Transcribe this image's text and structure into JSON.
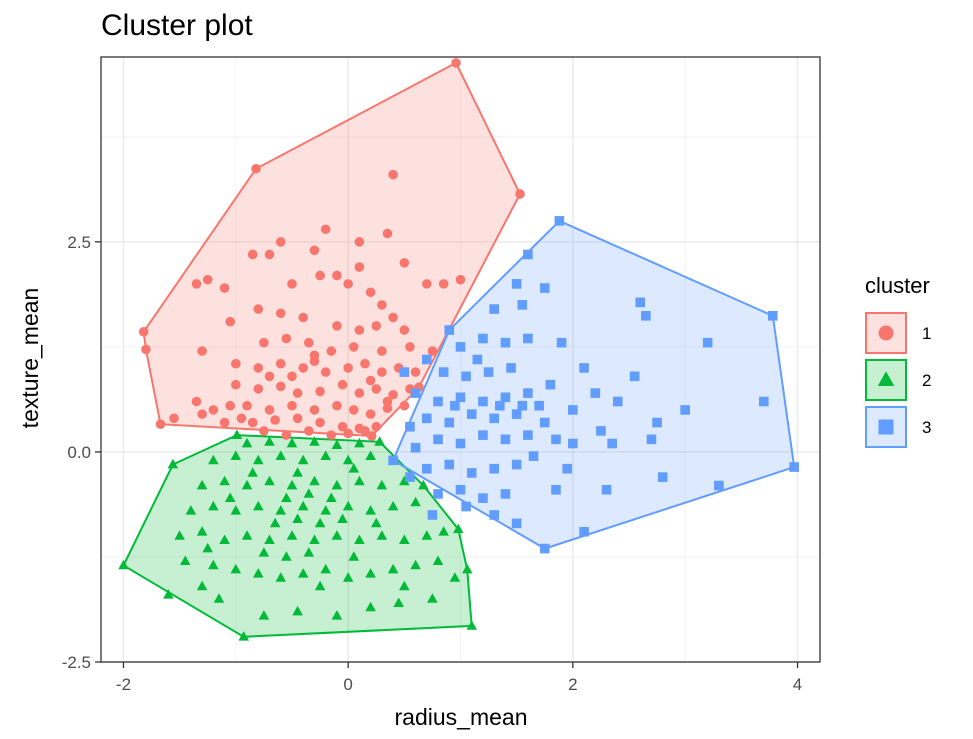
{
  "chart_data": {
    "type": "scatter",
    "title": "Cluster plot",
    "xlabel": "radius_mean",
    "ylabel": "texture_mean",
    "xlim": [
      -2.2,
      4.2
    ],
    "ylim": [
      -2.5,
      4.7
    ],
    "xticks": [
      -2,
      0,
      2,
      4
    ],
    "yticks": [
      -2.5,
      0.0,
      2.5
    ],
    "xtick_labels": [
      "-2",
      "0",
      "2",
      "4"
    ],
    "ytick_labels": [
      "-2.5",
      "0.0",
      "2.5"
    ],
    "grid": true,
    "legend": {
      "title": "cluster",
      "position": "right",
      "entries": [
        "1",
        "2",
        "3"
      ]
    },
    "series": [
      {
        "name": "1",
        "color": "#F8766D",
        "marker": "circle",
        "hull": [
          [
            -1.82,
            1.43
          ],
          [
            -0.82,
            3.37
          ],
          [
            0.96,
            4.63
          ],
          [
            1.53,
            3.07
          ],
          [
            0.63,
            0.77
          ],
          [
            0.21,
            0.19
          ],
          [
            -1.67,
            0.33
          ],
          [
            -1.8,
            1.22
          ]
        ],
        "points": [
          [
            -1.82,
            1.43
          ],
          [
            -0.82,
            3.37
          ],
          [
            0.96,
            4.63
          ],
          [
            1.53,
            3.07
          ],
          [
            0.63,
            0.77
          ],
          [
            0.21,
            0.19
          ],
          [
            -1.67,
            0.33
          ],
          [
            -1.8,
            1.22
          ],
          [
            0.4,
            3.3
          ],
          [
            -0.2,
            2.65
          ],
          [
            -0.6,
            2.5
          ],
          [
            0.35,
            2.6
          ],
          [
            0.1,
            2.5
          ],
          [
            -0.3,
            2.4
          ],
          [
            -0.7,
            2.35
          ],
          [
            -0.85,
            2.35
          ],
          [
            0.1,
            2.2
          ],
          [
            0.5,
            2.25
          ],
          [
            -0.1,
            2.1
          ],
          [
            0.7,
            2.0
          ],
          [
            0.85,
            2.0
          ],
          [
            1.0,
            2.05
          ],
          [
            -1.25,
            2.05
          ],
          [
            -1.35,
            2.0
          ],
          [
            -1.1,
            1.95
          ],
          [
            -0.5,
            2.0
          ],
          [
            -0.25,
            2.1
          ],
          [
            0.0,
            2.0
          ],
          [
            0.2,
            1.9
          ],
          [
            0.3,
            1.75
          ],
          [
            0.4,
            1.6
          ],
          [
            -0.8,
            1.7
          ],
          [
            -0.6,
            1.65
          ],
          [
            -0.4,
            1.6
          ],
          [
            -0.1,
            1.5
          ],
          [
            0.1,
            1.45
          ],
          [
            0.25,
            1.5
          ],
          [
            0.5,
            1.45
          ],
          [
            -1.05,
            1.55
          ],
          [
            -0.75,
            1.3
          ],
          [
            -0.55,
            1.35
          ],
          [
            -0.35,
            1.3
          ],
          [
            -0.15,
            1.2
          ],
          [
            0.05,
            1.25
          ],
          [
            0.3,
            1.2
          ],
          [
            0.55,
            1.25
          ],
          [
            0.75,
            1.2
          ],
          [
            -1.3,
            1.2
          ],
          [
            -1.0,
            1.05
          ],
          [
            -0.8,
            1.0
          ],
          [
            -0.6,
            1.05
          ],
          [
            -0.4,
            1.0
          ],
          [
            -0.3,
            1.08
          ],
          [
            -0.2,
            0.95
          ],
          [
            0.0,
            1.0
          ],
          [
            0.15,
            1.05
          ],
          [
            0.3,
            0.95
          ],
          [
            0.45,
            1.0
          ],
          [
            0.6,
            0.95
          ],
          [
            -1.0,
            0.8
          ],
          [
            -0.8,
            0.75
          ],
          [
            -0.6,
            0.78
          ],
          [
            -0.45,
            0.7
          ],
          [
            -0.25,
            0.72
          ],
          [
            -0.05,
            0.8
          ],
          [
            0.1,
            0.7
          ],
          [
            0.25,
            0.75
          ],
          [
            0.4,
            0.68
          ],
          [
            0.55,
            0.75
          ],
          [
            -0.9,
            0.55
          ],
          [
            -0.7,
            0.5
          ],
          [
            -0.5,
            0.55
          ],
          [
            -0.3,
            0.5
          ],
          [
            -0.1,
            0.55
          ],
          [
            0.05,
            0.5
          ],
          [
            0.2,
            0.45
          ],
          [
            0.35,
            0.52
          ],
          [
            0.5,
            0.55
          ],
          [
            -1.35,
            0.6
          ],
          [
            -1.2,
            0.5
          ],
          [
            -1.05,
            0.55
          ],
          [
            -0.85,
            0.35
          ],
          [
            -0.65,
            0.38
          ],
          [
            -0.45,
            0.4
          ],
          [
            -0.25,
            0.35
          ],
          [
            -0.05,
            0.3
          ],
          [
            0.1,
            0.28
          ],
          [
            0.25,
            0.3
          ],
          [
            -1.55,
            0.4
          ],
          [
            -1.3,
            0.45
          ],
          [
            -1.1,
            0.35
          ],
          [
            -0.95,
            0.4
          ],
          [
            -0.75,
            0.25
          ],
          [
            -0.55,
            0.2
          ],
          [
            -0.35,
            0.25
          ],
          [
            -0.15,
            0.2
          ],
          [
            0.0,
            0.22
          ],
          [
            0.15,
            0.25
          ],
          [
            -0.3,
            1.15
          ],
          [
            -0.5,
            0.9
          ],
          [
            0.2,
            0.85
          ],
          [
            -0.7,
            0.9
          ],
          [
            0.35,
            0.6
          ]
        ]
      },
      {
        "name": "2",
        "color": "#00BA38",
        "marker": "triangle",
        "hull": [
          [
            -2.0,
            -1.35
          ],
          [
            -0.93,
            -2.2
          ],
          [
            1.1,
            -2.07
          ],
          [
            1.06,
            -1.4
          ],
          [
            0.98,
            -0.92
          ],
          [
            0.67,
            -0.4
          ],
          [
            0.28,
            0.12
          ],
          [
            -0.99,
            0.2
          ],
          [
            -1.56,
            -0.15
          ]
        ],
        "points": [
          [
            -2.0,
            -1.35
          ],
          [
            -0.93,
            -2.2
          ],
          [
            1.1,
            -2.07
          ],
          [
            1.06,
            -1.4
          ],
          [
            0.98,
            -0.92
          ],
          [
            0.67,
            -0.4
          ],
          [
            0.28,
            0.12
          ],
          [
            -0.99,
            0.2
          ],
          [
            -1.56,
            -0.15
          ],
          [
            -1.6,
            -1.7
          ],
          [
            -1.3,
            -1.6
          ],
          [
            -1.15,
            -1.75
          ],
          [
            -0.75,
            -1.95
          ],
          [
            -0.45,
            -1.9
          ],
          [
            -0.1,
            -1.95
          ],
          [
            0.2,
            -1.85
          ],
          [
            0.45,
            -1.8
          ],
          [
            0.75,
            -1.75
          ],
          [
            0.95,
            -1.5
          ],
          [
            -1.45,
            -1.3
          ],
          [
            -1.2,
            -1.35
          ],
          [
            -1.0,
            -1.4
          ],
          [
            -0.8,
            -1.45
          ],
          [
            -0.6,
            -1.5
          ],
          [
            -0.4,
            -1.45
          ],
          [
            -0.2,
            -1.4
          ],
          [
            0.0,
            -1.5
          ],
          [
            0.2,
            -1.45
          ],
          [
            0.4,
            -1.4
          ],
          [
            0.6,
            -1.35
          ],
          [
            0.8,
            -1.3
          ],
          [
            -1.5,
            -1.0
          ],
          [
            -1.3,
            -0.95
          ],
          [
            -1.1,
            -1.05
          ],
          [
            -0.9,
            -1.0
          ],
          [
            -0.7,
            -1.05
          ],
          [
            -0.5,
            -1.0
          ],
          [
            -0.3,
            -1.05
          ],
          [
            -0.1,
            -1.0
          ],
          [
            0.1,
            -1.05
          ],
          [
            0.3,
            -1.0
          ],
          [
            0.5,
            -1.05
          ],
          [
            0.7,
            -1.0
          ],
          [
            0.85,
            -0.95
          ],
          [
            -1.4,
            -0.7
          ],
          [
            -1.2,
            -0.65
          ],
          [
            -1.0,
            -0.7
          ],
          [
            -0.8,
            -0.65
          ],
          [
            -0.6,
            -0.7
          ],
          [
            -0.4,
            -0.65
          ],
          [
            -0.2,
            -0.7
          ],
          [
            0.0,
            -0.65
          ],
          [
            0.2,
            -0.7
          ],
          [
            0.4,
            -0.65
          ],
          [
            0.6,
            -0.6
          ],
          [
            -1.3,
            -0.4
          ],
          [
            -1.1,
            -0.35
          ],
          [
            -0.9,
            -0.4
          ],
          [
            -0.7,
            -0.35
          ],
          [
            -0.5,
            -0.4
          ],
          [
            -0.3,
            -0.35
          ],
          [
            -0.1,
            -0.4
          ],
          [
            0.1,
            -0.35
          ],
          [
            0.3,
            -0.4
          ],
          [
            0.5,
            -0.35
          ],
          [
            -1.2,
            -0.1
          ],
          [
            -1.0,
            -0.05
          ],
          [
            -0.8,
            -0.1
          ],
          [
            -0.6,
            -0.05
          ],
          [
            -0.4,
            -0.1
          ],
          [
            -0.2,
            -0.05
          ],
          [
            0.0,
            -0.1
          ],
          [
            0.2,
            -0.05
          ],
          [
            -0.9,
            0.1
          ],
          [
            -0.7,
            0.12
          ],
          [
            -0.5,
            0.1
          ],
          [
            -0.3,
            0.12
          ],
          [
            -0.1,
            0.08
          ],
          [
            0.1,
            0.1
          ],
          [
            -0.65,
            -0.85
          ],
          [
            -0.45,
            -0.8
          ],
          [
            -0.25,
            -0.85
          ],
          [
            -0.55,
            -0.55
          ],
          [
            -0.35,
            -0.5
          ],
          [
            -0.15,
            -0.55
          ],
          [
            -0.75,
            -1.2
          ],
          [
            -0.55,
            -1.25
          ],
          [
            -0.35,
            -1.2
          ],
          [
            0.05,
            -1.25
          ],
          [
            -1.25,
            -1.15
          ],
          [
            -0.05,
            -0.8
          ],
          [
            0.25,
            -0.85
          ],
          [
            -0.85,
            -0.25
          ],
          [
            -0.45,
            -0.25
          ],
          [
            0.05,
            -0.2
          ],
          [
            -1.05,
            -0.55
          ],
          [
            -0.25,
            -1.6
          ],
          [
            0.5,
            -1.6
          ]
        ]
      },
      {
        "name": "3",
        "color": "#619CFF",
        "marker": "square",
        "hull": [
          [
            1.88,
            2.75
          ],
          [
            3.78,
            1.62
          ],
          [
            3.97,
            -0.18
          ],
          [
            1.75,
            -1.15
          ],
          [
            0.4,
            -0.1
          ],
          [
            0.9,
            1.45
          ]
        ],
        "points": [
          [
            1.88,
            2.75
          ],
          [
            3.78,
            1.62
          ],
          [
            3.97,
            -0.18
          ],
          [
            1.75,
            -1.15
          ],
          [
            0.4,
            -0.1
          ],
          [
            0.9,
            1.45
          ],
          [
            1.6,
            2.35
          ],
          [
            1.5,
            2.0
          ],
          [
            1.75,
            1.95
          ],
          [
            1.3,
            1.7
          ],
          [
            1.55,
            1.75
          ],
          [
            2.6,
            1.78
          ],
          [
            2.65,
            1.62
          ],
          [
            3.2,
            1.3
          ],
          [
            3.7,
            0.6
          ],
          [
            3.3,
            -0.4
          ],
          [
            2.1,
            -0.95
          ],
          [
            2.3,
            -0.45
          ],
          [
            2.8,
            -0.3
          ],
          [
            3.0,
            0.5
          ],
          [
            2.75,
            0.35
          ],
          [
            2.4,
            0.6
          ],
          [
            2.55,
            0.9
          ],
          [
            2.1,
            1.0
          ],
          [
            2.2,
            0.7
          ],
          [
            2.0,
            0.5
          ],
          [
            1.8,
            0.8
          ],
          [
            1.9,
            1.3
          ],
          [
            1.6,
            1.35
          ],
          [
            1.4,
            1.3
          ],
          [
            1.2,
            1.35
          ],
          [
            1.0,
            1.25
          ],
          [
            1.45,
            1.0
          ],
          [
            1.25,
            0.95
          ],
          [
            1.05,
            0.9
          ],
          [
            0.85,
            0.95
          ],
          [
            1.6,
            0.7
          ],
          [
            1.4,
            0.65
          ],
          [
            1.2,
            0.6
          ],
          [
            1.0,
            0.65
          ],
          [
            0.8,
            0.6
          ],
          [
            0.6,
            0.7
          ],
          [
            1.5,
            0.45
          ],
          [
            1.3,
            0.4
          ],
          [
            1.1,
            0.45
          ],
          [
            0.9,
            0.35
          ],
          [
            0.7,
            0.4
          ],
          [
            0.55,
            0.3
          ],
          [
            1.6,
            0.2
          ],
          [
            1.4,
            0.15
          ],
          [
            1.2,
            0.2
          ],
          [
            1.0,
            0.1
          ],
          [
            0.8,
            0.15
          ],
          [
            0.6,
            0.05
          ],
          [
            1.5,
            -0.15
          ],
          [
            1.3,
            -0.2
          ],
          [
            1.1,
            -0.25
          ],
          [
            0.9,
            -0.15
          ],
          [
            0.7,
            -0.2
          ],
          [
            0.55,
            -0.3
          ],
          [
            1.4,
            -0.5
          ],
          [
            1.2,
            -0.55
          ],
          [
            1.0,
            -0.45
          ],
          [
            0.8,
            -0.5
          ],
          [
            1.3,
            -0.75
          ],
          [
            1.5,
            -0.85
          ],
          [
            1.85,
            -0.45
          ],
          [
            1.7,
            0.55
          ],
          [
            1.75,
            0.35
          ],
          [
            1.85,
            0.15
          ],
          [
            2.0,
            0.1
          ],
          [
            2.35,
            0.1
          ],
          [
            2.7,
            0.15
          ],
          [
            0.7,
            1.1
          ],
          [
            0.5,
            0.95
          ],
          [
            1.15,
            1.1
          ],
          [
            0.95,
            0.55
          ],
          [
            1.35,
            0.55
          ],
          [
            1.55,
            0.55
          ],
          [
            1.65,
            -0.05
          ],
          [
            1.05,
            -0.65
          ],
          [
            0.75,
            -0.75
          ],
          [
            2.25,
            0.25
          ],
          [
            1.95,
            -0.2
          ]
        ]
      }
    ]
  }
}
